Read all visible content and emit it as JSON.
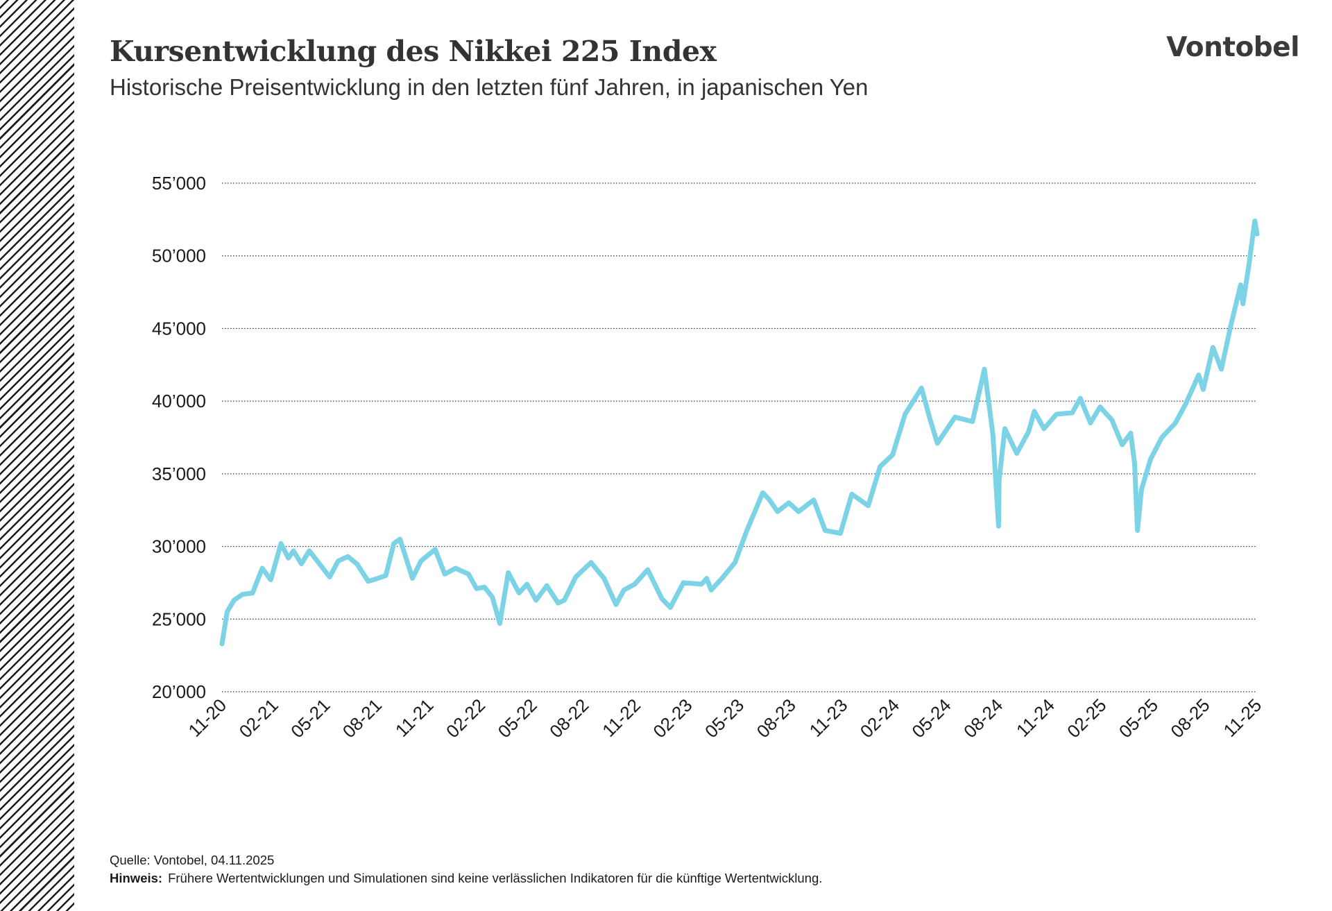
{
  "header": {
    "title": "Kursentwicklung des Nikkei 225 Index",
    "subtitle": "Historische Preisentwicklung in den letzten fünf Jahren, in japanischen Yen",
    "logo": "Vontobel"
  },
  "footer": {
    "source": "Quelle: Vontobel, 04.11.2025",
    "note_label": "Hinweis:",
    "note_text": "Frühere Wertentwicklungen und Simulationen sind keine verlässlichen Indikatoren für die künftige Wertentwicklung."
  },
  "chart_data": {
    "type": "line",
    "title": "Kursentwicklung des Nikkei 225 Index",
    "subtitle": "Historische Preisentwicklung in den letzten fünf Jahren, in japanischen Yen",
    "xlabel": "",
    "ylabel": "",
    "ylim": [
      20000,
      55000
    ],
    "y_ticks": [
      20000,
      25000,
      30000,
      35000,
      40000,
      45000,
      50000,
      55000
    ],
    "y_tick_labels": [
      "20’000",
      "25’000",
      "30’000",
      "35’000",
      "40’000",
      "45’000",
      "50’000",
      "55’000"
    ],
    "x_tick_labels": [
      "11-20",
      "02-21",
      "05-21",
      "08-21",
      "11-21",
      "02-22",
      "05-22",
      "08-22",
      "11-22",
      "02-23",
      "05-23",
      "08-23",
      "11-23",
      "02-24",
      "05-24",
      "08-24",
      "11-24",
      "02-25",
      "05-25",
      "08-25",
      "11-25"
    ],
    "grid": "horizontal dotted",
    "legend": "none",
    "line_color": "#7dd3e6",
    "series": [
      {
        "x": [
          "2020-11-04",
          "2020-11-13",
          "2020-11-25",
          "2020-12-10",
          "2020-12-28",
          "2021-01-14",
          "2021-01-29",
          "2021-02-16",
          "2021-03-01",
          "2021-03-10",
          "2021-03-24",
          "2021-04-07",
          "2021-04-21",
          "2021-05-13",
          "2021-05-28",
          "2021-06-14",
          "2021-06-30",
          "2021-07-20",
          "2021-08-06",
          "2021-08-20",
          "2021-09-03",
          "2021-09-14",
          "2021-10-06",
          "2021-10-21",
          "2021-11-15",
          "2021-12-02",
          "2021-12-21",
          "2022-01-13",
          "2022-01-27",
          "2022-02-10",
          "2022-02-24",
          "2022-03-09",
          "2022-03-24",
          "2022-04-12",
          "2022-04-26",
          "2022-05-12",
          "2022-05-31",
          "2022-06-20",
          "2022-07-01",
          "2022-07-21",
          "2022-08-17",
          "2022-09-09",
          "2022-09-30",
          "2022-10-14",
          "2022-11-02",
          "2022-11-25",
          "2022-12-20",
          "2023-01-04",
          "2023-01-27",
          "2023-02-28",
          "2023-03-09",
          "2023-03-17",
          "2023-04-05",
          "2023-04-28",
          "2023-05-19",
          "2023-06-16",
          "2023-06-28",
          "2023-07-12",
          "2023-08-01",
          "2023-08-18",
          "2023-09-14",
          "2023-10-04",
          "2023-10-31",
          "2023-11-20",
          "2023-12-19",
          "2024-01-09",
          "2024-01-31",
          "2024-02-22",
          "2024-03-22",
          "2024-04-05",
          "2024-04-19",
          "2024-05-20",
          "2024-06-20",
          "2024-07-11",
          "2024-07-26",
          "2024-08-05",
          "2024-08-06",
          "2024-08-16",
          "2024-09-06",
          "2024-09-27",
          "2024-10-07",
          "2024-10-24",
          "2024-11-15",
          "2024-12-13",
          "2024-12-27",
          "2025-01-14",
          "2025-01-31",
          "2025-02-21",
          "2025-03-11",
          "2025-03-26",
          "2025-04-02",
          "2025-04-07",
          "2025-04-14",
          "2025-04-30",
          "2025-05-20",
          "2025-06-13",
          "2025-07-01",
          "2025-07-24",
          "2025-08-01",
          "2025-08-18",
          "2025-09-02",
          "2025-09-18",
          "2025-10-06",
          "2025-10-10",
          "2025-10-20",
          "2025-10-31",
          "2025-11-04"
        ],
        "values": [
          23300,
          25500,
          26300,
          26700,
          26800,
          28500,
          27700,
          30200,
          29200,
          29700,
          28800,
          29700,
          29000,
          27900,
          29000,
          29300,
          28800,
          27600,
          27800,
          28000,
          30200,
          30500,
          27800,
          29000,
          29800,
          28100,
          28500,
          28100,
          27100,
          27200,
          26500,
          24700,
          28200,
          26800,
          27400,
          26300,
          27300,
          26100,
          26300,
          27900,
          28900,
          27800,
          26000,
          27000,
          27400,
          28400,
          26400,
          25800,
          27500,
          27400,
          27800,
          27000,
          27800,
          28900,
          31100,
          33700,
          33200,
          32400,
          33000,
          32400,
          33200,
          31100,
          30900,
          33600,
          32800,
          35500,
          36300,
          39100,
          40900,
          38900,
          37100,
          38900,
          38600,
          42200,
          37700,
          31400,
          34600,
          38100,
          36400,
          37900,
          39300,
          38100,
          39100,
          39200,
          40200,
          38500,
          39600,
          38700,
          37000,
          37800,
          35700,
          31100,
          33900,
          36000,
          37500,
          38500,
          39800,
          41800,
          40800,
          43700,
          42200,
          45100,
          48000,
          46700,
          49200,
          52400,
          51500
        ]
      }
    ]
  }
}
